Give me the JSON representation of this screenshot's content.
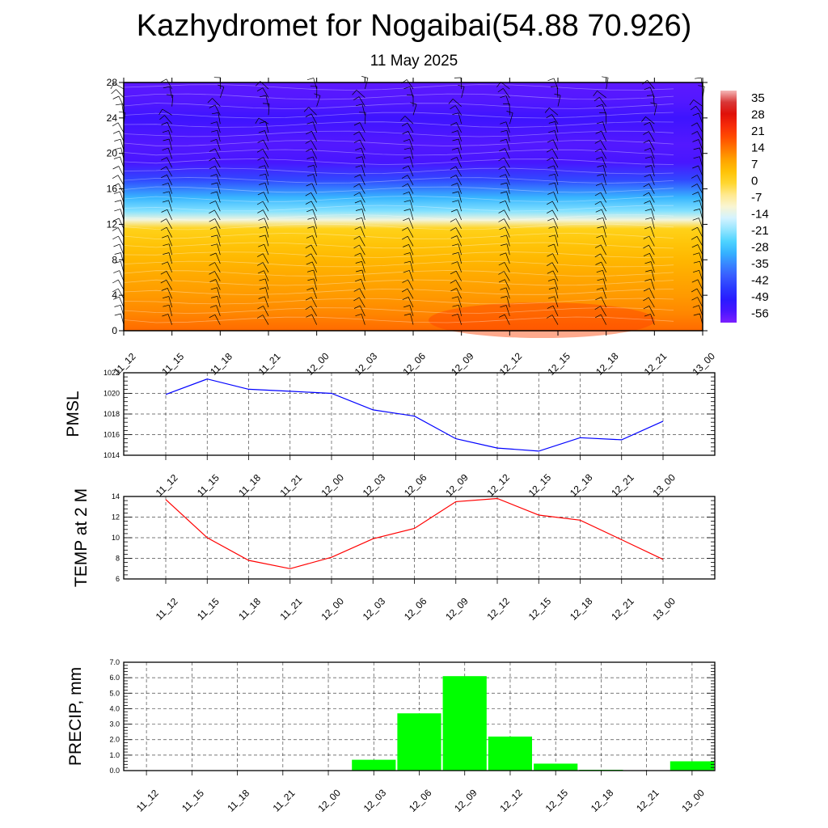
{
  "title": "Kazhydromet for Nogaibai(54.88 70.926)",
  "subtitle": "11 May 2025",
  "time_labels": [
    "11_12",
    "11_15",
    "11_18",
    "11_21",
    "12_00",
    "12_03",
    "12_06",
    "12_09",
    "12_12",
    "12_15",
    "12_18",
    "12_21",
    "13_00"
  ],
  "chart_data": [
    {
      "type": "heatmap",
      "name_hint": "cross-section",
      "x": [
        "11_12",
        "11_15",
        "11_18",
        "11_21",
        "12_00",
        "12_03",
        "12_06",
        "12_09",
        "12_12",
        "12_15",
        "12_18",
        "12_21",
        "13_00"
      ],
      "yticks": [
        0,
        4,
        8,
        12,
        16,
        20,
        24,
        28
      ],
      "ylim": [
        0,
        28
      ],
      "colorbar_labels": [
        "35",
        "28",
        "21",
        "14",
        "7",
        "0",
        "-7",
        "-14",
        "-21",
        "-28",
        "-35",
        "-42",
        "-49",
        "-56"
      ],
      "colorbar_range": [
        -60,
        38
      ],
      "profile": [
        [
          0,
          15
        ],
        [
          2,
          12
        ],
        [
          4,
          10
        ],
        [
          6,
          8
        ],
        [
          8,
          6
        ],
        [
          10,
          3
        ],
        [
          11.5,
          0
        ],
        [
          12.5,
          -12
        ],
        [
          13.5,
          -22
        ],
        [
          15,
          -30
        ],
        [
          17,
          -43
        ],
        [
          19,
          -55
        ],
        [
          21,
          -56
        ],
        [
          24,
          -54
        ],
        [
          26,
          -56
        ],
        [
          28,
          -57
        ]
      ],
      "colors": {
        "hot": "#ff4a00",
        "warm": "#ffc000",
        "cold": "#32c8ff",
        "freezing": "#3c3cff",
        "deep": "#7b1fff"
      }
    },
    {
      "type": "line",
      "ylabel": "PMSL",
      "categories": [
        "11_12",
        "11_15",
        "11_18",
        "11_21",
        "12_00",
        "12_03",
        "12_06",
        "12_09",
        "12_12",
        "12_15",
        "12_18",
        "12_21",
        "13_00"
      ],
      "series": [
        {
          "values": [
            1019.9,
            1021.4,
            1020.4,
            1020.2,
            1020.0,
            1018.4,
            1017.8,
            1015.6,
            1014.7,
            1014.4,
            1015.7,
            1015.5,
            1017.3
          ],
          "color": "#0000ff"
        }
      ],
      "ylim": [
        1014,
        1022
      ],
      "yticks": [
        "1014",
        "1016",
        "1018",
        "1020",
        "1022"
      ],
      "grid": true
    },
    {
      "type": "line",
      "ylabel": "TEMP at 2 M",
      "categories": [
        "11_12",
        "11_15",
        "11_18",
        "11_21",
        "12_00",
        "12_03",
        "12_06",
        "12_09",
        "12_12",
        "12_15",
        "12_18",
        "12_21",
        "13_00"
      ],
      "series": [
        {
          "values": [
            13.7,
            10.0,
            7.8,
            7.0,
            8.1,
            9.9,
            10.9,
            13.5,
            13.8,
            12.2,
            11.7,
            9.8,
            7.9
          ],
          "color": "#ff0000"
        }
      ],
      "ylim": [
        6,
        14
      ],
      "yticks": [
        "6",
        "8",
        "10",
        "12",
        "14"
      ],
      "grid": true
    },
    {
      "type": "bar",
      "ylabel": "PRECIP, mm",
      "categories": [
        "11_12",
        "11_15",
        "11_18",
        "11_21",
        "12_00",
        "12_03",
        "12_06",
        "12_09",
        "12_12",
        "12_15",
        "12_18",
        "12_21",
        "13_00"
      ],
      "values": [
        0,
        0,
        0,
        0,
        0,
        0.7,
        3.7,
        6.1,
        2.2,
        0.45,
        0.05,
        0,
        0.6
      ],
      "color": "#00ff00",
      "ylim": [
        0,
        7
      ],
      "yticks": [
        "0.0",
        "1.0",
        "2.0",
        "3.0",
        "4.0",
        "5.0",
        "6.0",
        "7.0"
      ],
      "grid": true
    }
  ]
}
